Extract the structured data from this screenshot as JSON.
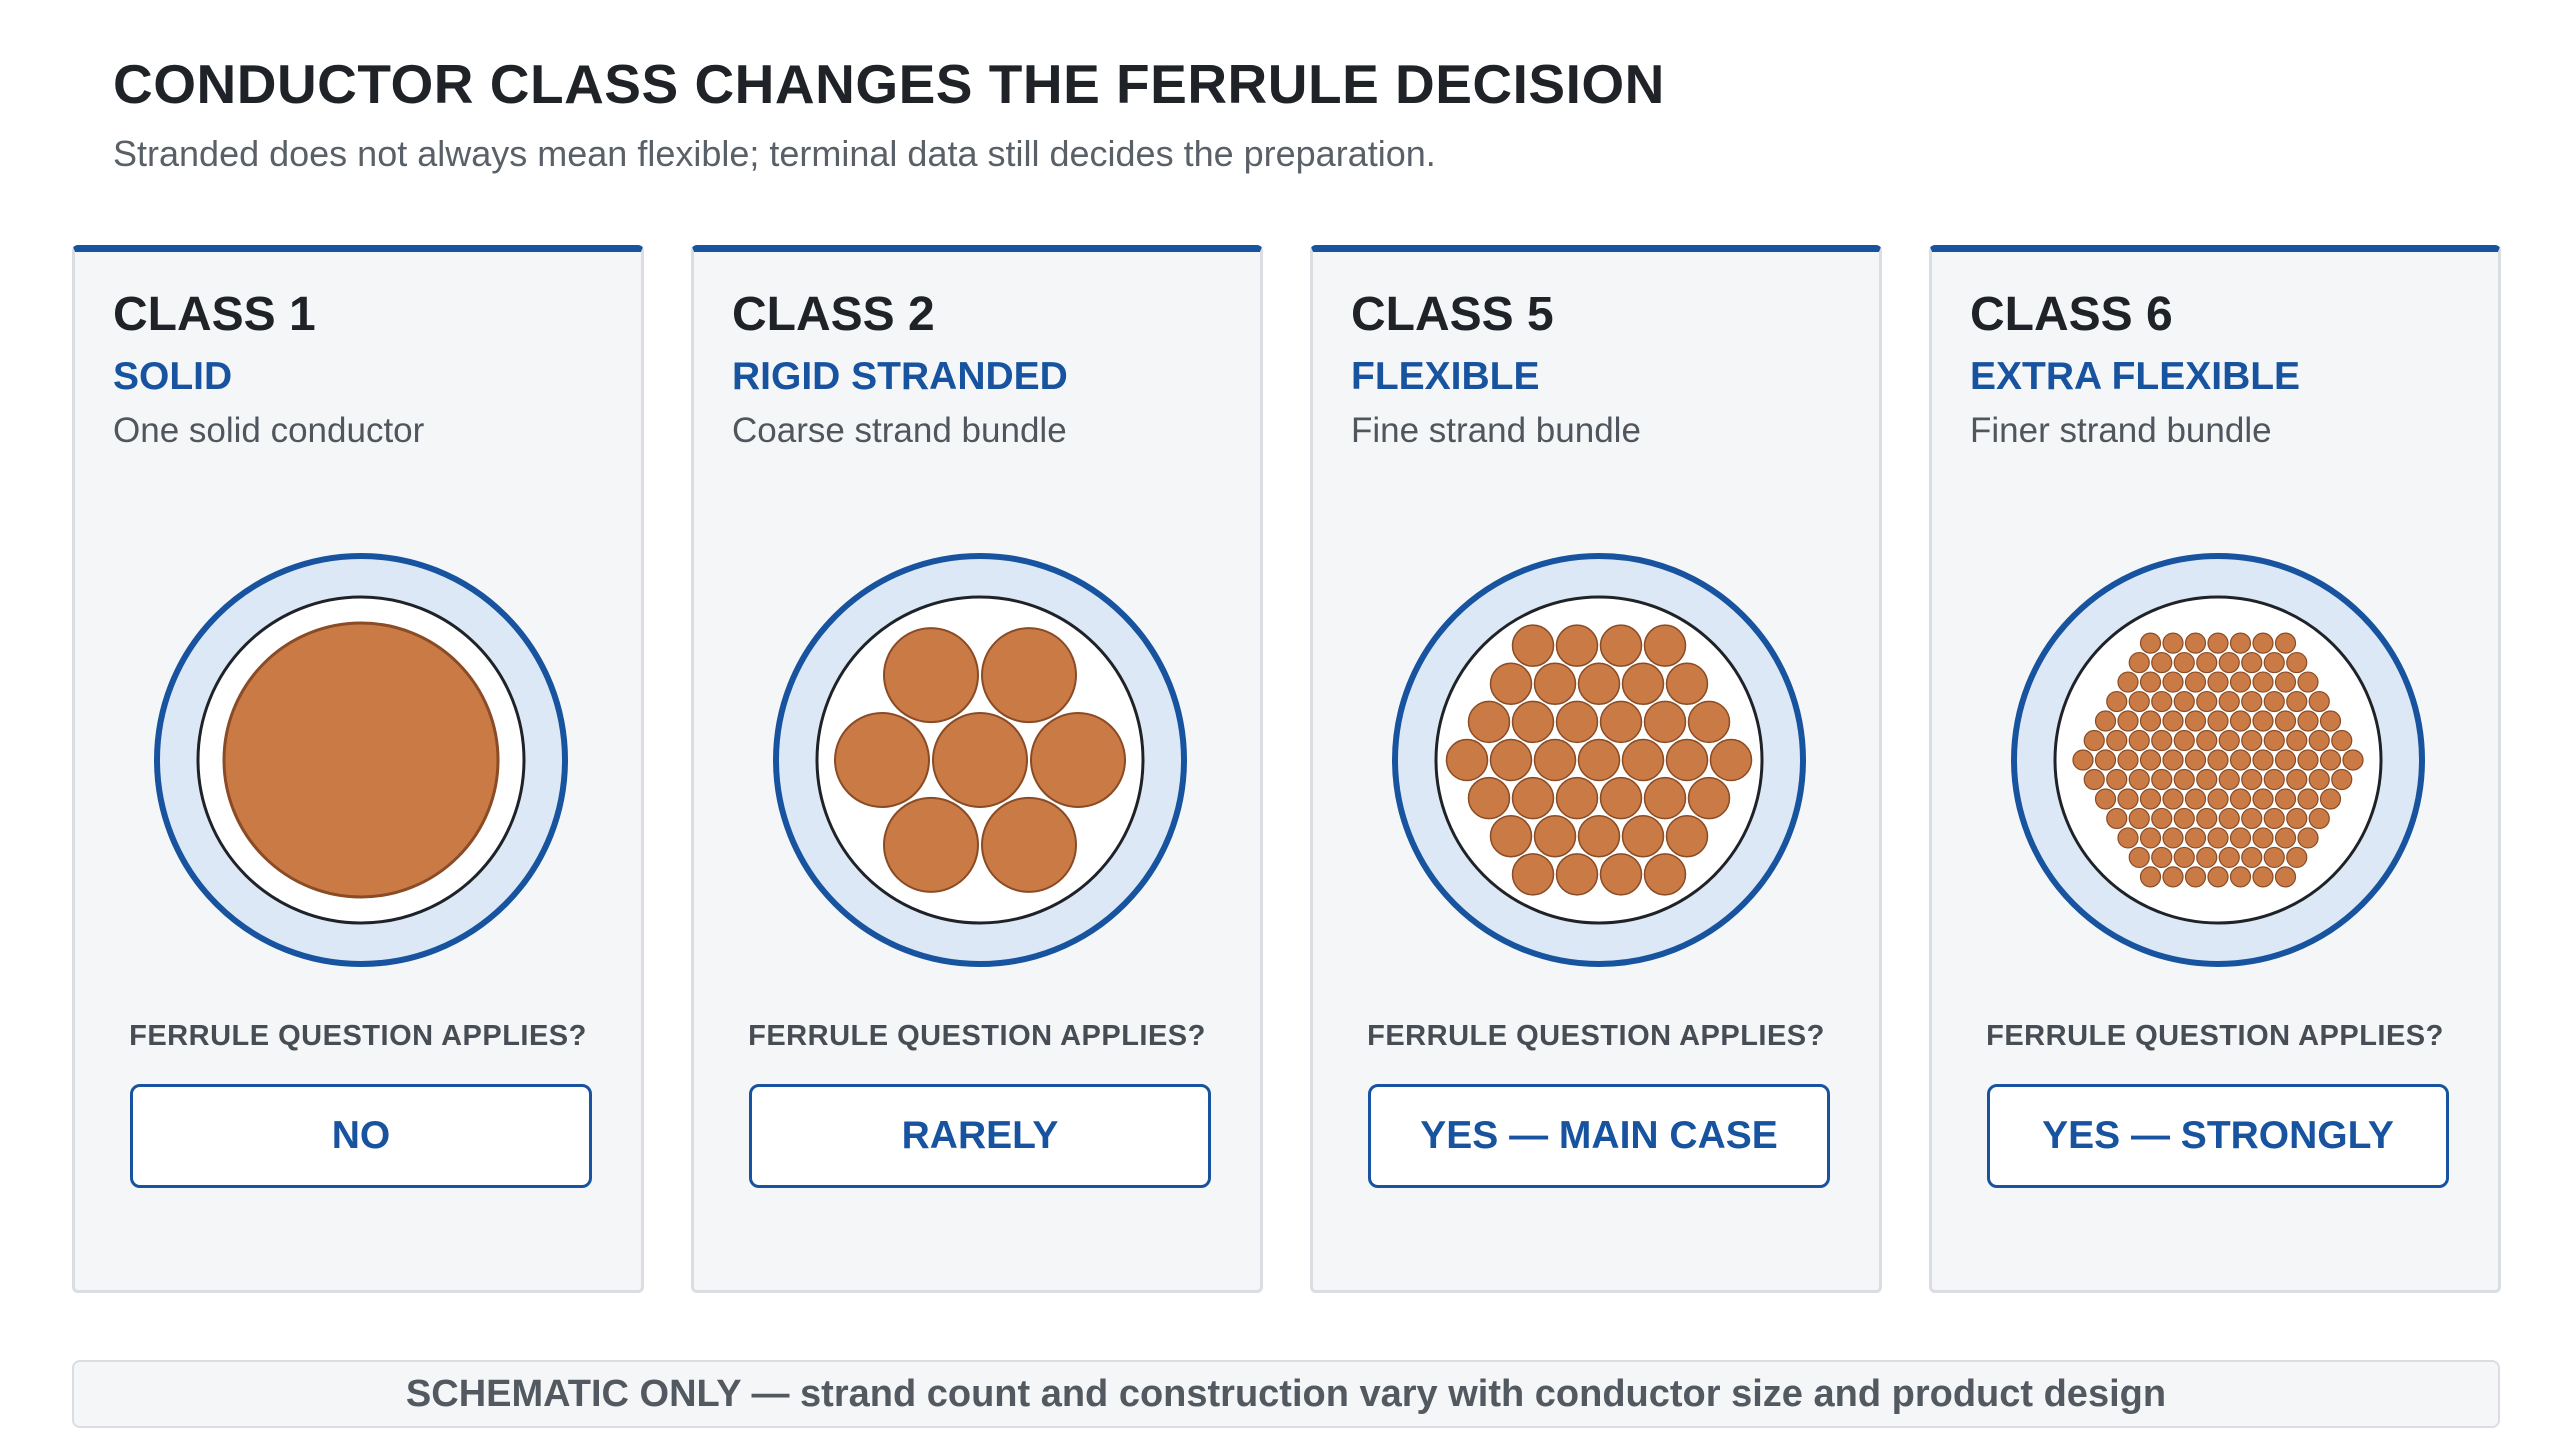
{
  "header": {
    "title": "CONDUCTOR CLASS CHANGES THE FERRULE DECISION",
    "subtitle": "Stranded does not always mean flexible; terminal data still decides the preparation."
  },
  "colors": {
    "accent": "#17539e",
    "insulation": "#dce8f6",
    "copper": "#c97a45",
    "copper_stroke": "#8a4b25",
    "card_bg": "#f5f6f8"
  },
  "cards": [
    {
      "class_label": "CLASS 1",
      "type": "SOLID",
      "description": "One solid conductor",
      "construction": "solid",
      "question": "FERRULE QUESTION APPLIES?",
      "answer": "NO"
    },
    {
      "class_label": "CLASS 2",
      "type": "RIGID STRANDED",
      "description": "Coarse strand bundle",
      "construction": "coarse-stranded",
      "question": "FERRULE QUESTION APPLIES?",
      "answer": "RARELY"
    },
    {
      "class_label": "CLASS 5",
      "type": "FLEXIBLE",
      "description": "Fine strand bundle",
      "construction": "fine-stranded",
      "question": "FERRULE QUESTION APPLIES?",
      "answer": "YES — MAIN CASE"
    },
    {
      "class_label": "CLASS 6",
      "type": "EXTRA FLEXIBLE",
      "description": "Finer strand bundle",
      "construction": "extra-fine-stranded",
      "question": "FERRULE QUESTION APPLIES?",
      "answer": "YES — STRONGLY"
    }
  ],
  "footer": {
    "note": "SCHEMATIC ONLY — strand count and construction vary with conductor size and product design"
  }
}
